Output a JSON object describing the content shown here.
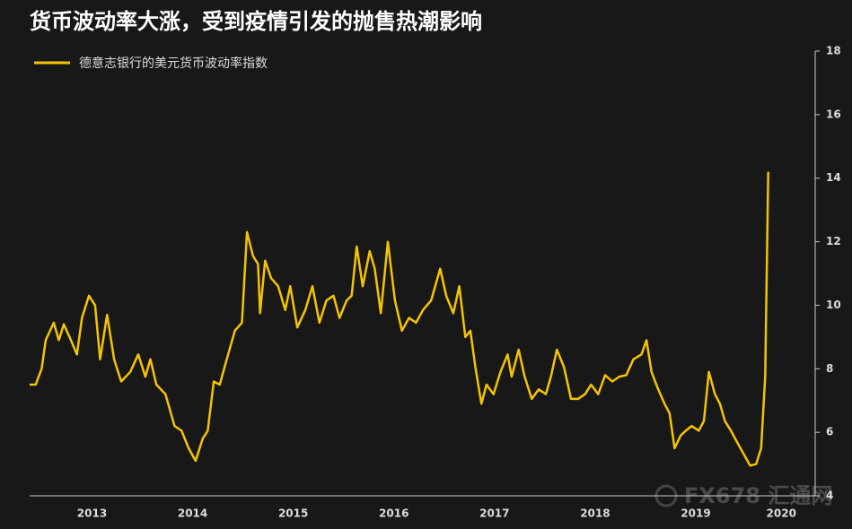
{
  "chart_data": {
    "type": "line",
    "title": "货币波动率大涨，受到疫情引发的抛售热潮影响",
    "watermark": "FX678 汇通网",
    "series": [
      {
        "name": "德意志银行的美元货币波动率指数",
        "color": "#f5c400",
        "x": [
          2012.88,
          2012.94,
          2013.0,
          2013.04,
          2013.12,
          2013.17,
          2013.22,
          2013.29,
          2013.35,
          2013.4,
          2013.47,
          2013.53,
          2013.58,
          2013.65,
          2013.72,
          2013.79,
          2013.88,
          2013.96,
          2014.03,
          2014.08,
          2014.14,
          2014.23,
          2014.32,
          2014.39,
          2014.46,
          2014.53,
          2014.6,
          2014.65,
          2014.71,
          2014.77,
          2014.83,
          2014.92,
          2014.99,
          2015.04,
          2015.1,
          2015.15,
          2015.17,
          2015.22,
          2015.28,
          2015.35,
          2015.42,
          2015.47,
          2015.54,
          2015.62,
          2015.69,
          2015.76,
          2015.83,
          2015.9,
          2015.96,
          2016.03,
          2016.08,
          2016.13,
          2016.19,
          2016.26,
          2016.31,
          2016.37,
          2016.44,
          2016.51,
          2016.58,
          2016.65,
          2016.72,
          2016.79,
          2016.87,
          2016.96,
          2017.02,
          2017.09,
          2017.15,
          2017.21,
          2017.26,
          2017.31,
          2017.37,
          2017.42,
          2017.49,
          2017.56,
          2017.63,
          2017.67,
          2017.74,
          2017.8,
          2017.87,
          2017.94,
          2018.01,
          2018.06,
          2018.12,
          2018.19,
          2018.26,
          2018.33,
          2018.4,
          2018.46,
          2018.53,
          2018.6,
          2018.67,
          2018.74,
          2018.81,
          2018.88,
          2018.96,
          2019.01,
          2019.06,
          2019.12,
          2019.19,
          2019.24,
          2019.29,
          2019.35,
          2019.4,
          2019.46,
          2019.53,
          2019.58,
          2019.63,
          2019.69,
          2019.74,
          2019.79,
          2019.85,
          2019.9,
          2019.97,
          2020.04,
          2020.1,
          2020.15,
          2020.19,
          2020.22
        ],
        "values": [
          7.5,
          7.5,
          8.0,
          8.9,
          9.45,
          8.9,
          9.4,
          8.9,
          8.45,
          9.6,
          10.3,
          10.0,
          8.3,
          9.7,
          8.3,
          7.6,
          7.9,
          8.45,
          7.75,
          8.3,
          7.5,
          7.2,
          6.2,
          6.05,
          5.5,
          5.1,
          5.8,
          6.05,
          7.6,
          7.5,
          8.2,
          9.2,
          9.45,
          12.3,
          11.55,
          11.3,
          9.75,
          11.4,
          10.85,
          10.6,
          9.85,
          10.6,
          9.3,
          9.85,
          10.6,
          9.45,
          10.15,
          10.3,
          9.6,
          10.15,
          10.3,
          11.85,
          10.6,
          11.7,
          11.15,
          9.75,
          12.0,
          10.15,
          9.2,
          9.6,
          9.45,
          9.85,
          10.15,
          11.15,
          10.3,
          9.75,
          10.6,
          9.0,
          9.2,
          8.05,
          6.9,
          7.5,
          7.2,
          7.9,
          8.45,
          7.75,
          8.6,
          7.75,
          7.05,
          7.35,
          7.2,
          7.75,
          8.6,
          8.05,
          7.05,
          7.05,
          7.2,
          7.5,
          7.2,
          7.8,
          7.6,
          7.75,
          7.8,
          8.3,
          8.45,
          8.9,
          7.9,
          7.4,
          6.9,
          6.6,
          5.5,
          5.9,
          6.05,
          6.2,
          6.05,
          6.35,
          7.9,
          7.2,
          6.9,
          6.35,
          6.05,
          5.75,
          5.35,
          4.95,
          5.0,
          5.5,
          7.75,
          14.2
        ]
      }
    ],
    "xlim": [
      2012.88,
      2020.66
    ],
    "xticks": [
      {
        "value": 2013.5,
        "label": "2013"
      },
      {
        "value": 2014.5,
        "label": "2014"
      },
      {
        "value": 2015.5,
        "label": "2015"
      },
      {
        "value": 2016.5,
        "label": "2016"
      },
      {
        "value": 2017.5,
        "label": "2017"
      },
      {
        "value": 2018.5,
        "label": "2018"
      },
      {
        "value": 2019.5,
        "label": "2019"
      },
      {
        "value": 2020.35,
        "label": "2020"
      }
    ],
    "ylim": [
      4,
      18
    ],
    "yticks": [
      4,
      6,
      8,
      10,
      12,
      14,
      16,
      18
    ],
    "axis_color": "#cccccc"
  }
}
